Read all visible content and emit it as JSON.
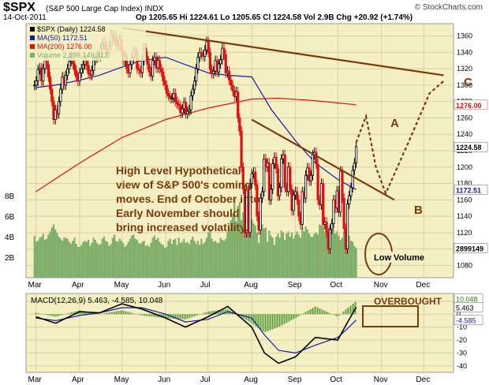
{
  "header": {
    "symbol": "$SPX",
    "description": "(S&P 500 Large Cap Index)  INDX",
    "date": "14-Oct-2011",
    "ohlc": "Op 1205.65  Hi 1224.61  Lo 1205.65  Cl 1224.58  Vol 2.9B  Chg +20.92 (+1.74%)",
    "watermark": "© StockCharts.com"
  },
  "legend": {
    "price": "$SPX (Daily) 1224.58",
    "ma50": "MA(50) 1172.51",
    "ma200": "MA(200) 1276.00",
    "volume": "Volume 2,899,149,312"
  },
  "annotations": {
    "main_text": [
      "High Level Hypothetical",
      "view of S&P 500's coming",
      "moves.  End of October into",
      "Early November should",
      "bring increased volatility."
    ],
    "label_a": "A",
    "label_b": "B",
    "label_c": "C",
    "low_volume": "Low Volume",
    "overbought": "OVERBOUGHT"
  },
  "price_tags": {
    "close": "1224.58",
    "ma200": "1276.00",
    "ma50": "1172.51",
    "volume": "2899149"
  },
  "macd_tags": {
    "title": "MACD(12,26,9) 5.463, -4.585, 10.048",
    "macd": "5.463",
    "signal": "-4.585",
    "hist": "10.048"
  },
  "colors": {
    "panel_bg": "#f5efc4",
    "grid": "#d9cfa3",
    "up_candle": "#000000",
    "down_candle": "#e01010",
    "ma50": "#1a1aa0",
    "ma200": "#e01010",
    "volume": "#7fae68",
    "trendline": "#7a3a10",
    "annotation_text": "#7a3a10",
    "macd_line": "#000000",
    "signal_line": "#1a1aa0",
    "histogram": "#5aa040"
  },
  "chart_data": [
    {
      "type": "candlestick",
      "title": "$SPX (Daily)",
      "x_ticks": [
        "Mar",
        "Apr",
        "May",
        "Jun",
        "Jul",
        "Aug",
        "Sep",
        "Oct",
        "Nov",
        "Dec"
      ],
      "y_ticks": [
        1080,
        1100,
        1120,
        1140,
        1160,
        1180,
        1200,
        1220,
        1240,
        1260,
        1280,
        1300,
        1320,
        1340,
        1360
      ],
      "ylim": [
        1065,
        1375
      ],
      "volume_ticks": [
        "8B",
        "6B",
        "4B",
        "2B"
      ],
      "volume_lim_billions": [
        0,
        10
      ],
      "grid": true,
      "closes": [
        1300,
        1305,
        1319,
        1321,
        1305,
        1320,
        1330,
        1325,
        1310,
        1295,
        1280,
        1258,
        1270,
        1265,
        1280,
        1295,
        1310,
        1300,
        1312,
        1320,
        1329,
        1330,
        1326,
        1318,
        1310,
        1305,
        1315,
        1320,
        1325,
        1330,
        1324,
        1314,
        1312,
        1318,
        1330,
        1333,
        1337,
        1335,
        1345,
        1350,
        1353,
        1342,
        1339,
        1348,
        1362,
        1357,
        1360,
        1349,
        1348,
        1356,
        1342,
        1330,
        1335,
        1320,
        1315,
        1325,
        1334,
        1343,
        1340,
        1320,
        1318,
        1315,
        1330,
        1345,
        1335,
        1325,
        1316,
        1311,
        1330,
        1334,
        1321,
        1330,
        1320,
        1316,
        1305,
        1300,
        1290,
        1287,
        1284,
        1284,
        1290,
        1280,
        1277,
        1275,
        1266,
        1271,
        1279,
        1265,
        1268,
        1270,
        1287,
        1295,
        1305,
        1320,
        1334,
        1340,
        1337,
        1335,
        1343,
        1353,
        1340,
        1319,
        1314,
        1317,
        1330,
        1316,
        1326,
        1331,
        1345,
        1337,
        1315,
        1317,
        1306,
        1300,
        1293,
        1286,
        1292,
        1260,
        1244,
        1200,
        1173,
        1120,
        1172,
        1120,
        1180,
        1192,
        1194,
        1178,
        1140,
        1123,
        1162,
        1170,
        1210,
        1200,
        1205,
        1160,
        1173,
        1204,
        1212,
        1198,
        1165,
        1175,
        1210,
        1215,
        1175,
        1170,
        1200,
        1173,
        1147,
        1166,
        1170,
        1160,
        1140,
        1130,
        1170,
        1162,
        1190,
        1199,
        1183,
        1190,
        1215,
        1218,
        1204,
        1160,
        1154,
        1180,
        1130,
        1133,
        1120,
        1100,
        1124,
        1131,
        1160,
        1150,
        1171,
        1145,
        1195,
        1162,
        1125,
        1100,
        1155,
        1165,
        1175,
        1196,
        1205,
        1225
      ],
      "ma50": [
        {
          "x": "2011-03-01",
          "y": 1297
        },
        {
          "x": "2011-03-15",
          "y": 1300
        },
        {
          "x": "2011-04-01",
          "y": 1306
        },
        {
          "x": "2011-04-15",
          "y": 1312
        },
        {
          "x": "2011-05-01",
          "y": 1322
        },
        {
          "x": "2011-05-15",
          "y": 1330
        },
        {
          "x": "2011-06-01",
          "y": 1334
        },
        {
          "x": "2011-06-15",
          "y": 1325
        },
        {
          "x": "2011-07-01",
          "y": 1315
        },
        {
          "x": "2011-07-15",
          "y": 1312
        },
        {
          "x": "2011-08-01",
          "y": 1310
        },
        {
          "x": "2011-08-15",
          "y": 1270
        },
        {
          "x": "2011-09-01",
          "y": 1232
        },
        {
          "x": "2011-09-15",
          "y": 1205
        },
        {
          "x": "2011-10-01",
          "y": 1185
        },
        {
          "x": "2011-10-14",
          "y": 1172.51
        }
      ],
      "ma200": [
        {
          "x": "2011-03-01",
          "y": 1170
        },
        {
          "x": "2011-04-01",
          "y": 1205
        },
        {
          "x": "2011-05-01",
          "y": 1236
        },
        {
          "x": "2011-06-01",
          "y": 1258
        },
        {
          "x": "2011-07-01",
          "y": 1272
        },
        {
          "x": "2011-08-01",
          "y": 1283
        },
        {
          "x": "2011-08-20",
          "y": 1284
        },
        {
          "x": "2011-09-15",
          "y": 1281
        },
        {
          "x": "2011-10-14",
          "y": 1276
        }
      ],
      "volume_billions": [
        4.1,
        3.5,
        3.6,
        3.9,
        4.0,
        4.3,
        3.7,
        3.8,
        4.2,
        4.5,
        4.9,
        5.2,
        4.7,
        4.4,
        4.0,
        3.8,
        3.6,
        3.9,
        3.9,
        3.8,
        3.5,
        3.3,
        3.6,
        3.9,
        3.3,
        3.0,
        3.0,
        3.2,
        3.5,
        3.6,
        3.5,
        3.7,
        3.1,
        3.4,
        3.9,
        3.7,
        3.4,
        3.2,
        3.3,
        3.8,
        4.0,
        3.6,
        3.5,
        3.1,
        3.3,
        3.9,
        4.2,
        3.6,
        3.5,
        3.8,
        3.6,
        3.4,
        3.0,
        3.2,
        3.5,
        3.8,
        4.1,
        4.2,
        3.8,
        3.7,
        3.4,
        3.3,
        3.5,
        3.6,
        3.1,
        3.2,
        3.0,
        3.4,
        3.9,
        4.1,
        3.7,
        3.9,
        3.5,
        3.3,
        3.2,
        2.9,
        3.0,
        3.6,
        3.8,
        3.3,
        3.7,
        3.8,
        3.2,
        3.9,
        3.4,
        3.5,
        3.8,
        3.4,
        3.5,
        3.3,
        3.7,
        4.0,
        3.6,
        3.3,
        3.6,
        3.2,
        3.8,
        3.3,
        3.5,
        3.9,
        4.4,
        4.8,
        3.8,
        3.5,
        3.6,
        3.4,
        3.4,
        3.9,
        3.7,
        3.6,
        3.8,
        4.5,
        4.8,
        5.6,
        6.2,
        7.8,
        5.5,
        7.0,
        7.4,
        5.6,
        6.4,
        7.0,
        4.5,
        5.1,
        5.2,
        5.7,
        5.3,
        5.1,
        4.4,
        3.4,
        4.1,
        5.2,
        4.8,
        4.9,
        3.5,
        4.6,
        4.1,
        3.9,
        3.2,
        4.0,
        4.3,
        3.9,
        4.6,
        4.4,
        3.7,
        4.3,
        4.5,
        4.0,
        4.4,
        3.8,
        4.2,
        4.5,
        4.2,
        3.9,
        4.8,
        4.5,
        5.0,
        4.7,
        4.3,
        4.0,
        4.0,
        4.3,
        4.4,
        4.2,
        5.2,
        5.1,
        4.8,
        4.5,
        4.9,
        4.4,
        5.0,
        5.2,
        4.7,
        4.3,
        4.5,
        4.1,
        3.7,
        3.9,
        4.4,
        4.8,
        5.3,
        4.1,
        3.6,
        3.5,
        3.1,
        2.9
      ],
      "trendlines": [
        {
          "name": "resistance",
          "from": {
            "x": "2011-05-01",
            "y": 1370
          },
          "to": {
            "x": "2011-12-15",
            "y": 1312
          }
        },
        {
          "name": "descending",
          "from": {
            "x": "2011-08-01",
            "y": 1258
          },
          "to": {
            "x": "2011-11-10",
            "y": 1160
          }
        }
      ],
      "hypothetical_path": [
        {
          "x": "2011-10-14",
          "y": 1230
        },
        {
          "x": "2011-10-21",
          "y": 1262
        },
        {
          "x": "2011-10-28",
          "y": 1200
        },
        {
          "x": "2011-11-04",
          "y": 1168
        },
        {
          "x": "2011-11-20",
          "y": 1230
        },
        {
          "x": "2011-12-05",
          "y": 1290
        },
        {
          "x": "2011-12-15",
          "y": 1305
        }
      ]
    },
    {
      "type": "macd",
      "title": "MACD(12,26,9) 5.463, -4.585, 10.048",
      "y_ticks": [
        10,
        0,
        -10,
        -20,
        -30,
        -40
      ],
      "ylim": [
        -45,
        16
      ],
      "x_ticks": [
        "Mar",
        "Apr",
        "May",
        "Jun",
        "Jul",
        "Aug",
        "Sep",
        "Oct",
        "Nov",
        "Dec"
      ],
      "macd": [
        {
          "x": "2011-03-01",
          "y": -2
        },
        {
          "x": "2011-03-15",
          "y": -7
        },
        {
          "x": "2011-04-01",
          "y": 2
        },
        {
          "x": "2011-04-15",
          "y": 1
        },
        {
          "x": "2011-05-01",
          "y": 8
        },
        {
          "x": "2011-05-15",
          "y": 4
        },
        {
          "x": "2011-06-01",
          "y": -3
        },
        {
          "x": "2011-06-15",
          "y": -10
        },
        {
          "x": "2011-07-01",
          "y": -2
        },
        {
          "x": "2011-07-15",
          "y": 6
        },
        {
          "x": "2011-08-01",
          "y": -10
        },
        {
          "x": "2011-08-10",
          "y": -30
        },
        {
          "x": "2011-08-20",
          "y": -38
        },
        {
          "x": "2011-09-01",
          "y": -33
        },
        {
          "x": "2011-09-15",
          "y": -18
        },
        {
          "x": "2011-10-01",
          "y": -20
        },
        {
          "x": "2011-10-07",
          "y": -8
        },
        {
          "x": "2011-10-14",
          "y": 5.463
        }
      ],
      "signal": [
        {
          "x": "2011-03-01",
          "y": -3
        },
        {
          "x": "2011-03-15",
          "y": -5
        },
        {
          "x": "2011-04-01",
          "y": -1
        },
        {
          "x": "2011-04-15",
          "y": 1
        },
        {
          "x": "2011-05-01",
          "y": 5
        },
        {
          "x": "2011-05-15",
          "y": 5
        },
        {
          "x": "2011-06-01",
          "y": 0
        },
        {
          "x": "2011-06-15",
          "y": -6
        },
        {
          "x": "2011-07-01",
          "y": -4
        },
        {
          "x": "2011-07-15",
          "y": 2
        },
        {
          "x": "2011-08-01",
          "y": -3
        },
        {
          "x": "2011-08-10",
          "y": -16
        },
        {
          "x": "2011-08-20",
          "y": -28
        },
        {
          "x": "2011-09-01",
          "y": -30
        },
        {
          "x": "2011-09-15",
          "y": -24
        },
        {
          "x": "2011-10-01",
          "y": -18
        },
        {
          "x": "2011-10-07",
          "y": -12
        },
        {
          "x": "2011-10-14",
          "y": -4.585
        }
      ],
      "histogram": [
        {
          "x": "2011-03-01",
          "y": 1
        },
        {
          "x": "2011-03-15",
          "y": -2
        },
        {
          "x": "2011-04-01",
          "y": 3
        },
        {
          "x": "2011-04-15",
          "y": 0
        },
        {
          "x": "2011-05-01",
          "y": 3
        },
        {
          "x": "2011-05-15",
          "y": -1
        },
        {
          "x": "2011-06-01",
          "y": -3
        },
        {
          "x": "2011-06-15",
          "y": -4
        },
        {
          "x": "2011-07-01",
          "y": 2
        },
        {
          "x": "2011-07-15",
          "y": 4
        },
        {
          "x": "2011-08-01",
          "y": -7
        },
        {
          "x": "2011-08-10",
          "y": -14
        },
        {
          "x": "2011-08-20",
          "y": -10
        },
        {
          "x": "2011-09-01",
          "y": -3
        },
        {
          "x": "2011-09-15",
          "y": 6
        },
        {
          "x": "2011-10-01",
          "y": -2
        },
        {
          "x": "2011-10-07",
          "y": 4
        },
        {
          "x": "2011-10-14",
          "y": 10.048
        }
      ]
    }
  ]
}
